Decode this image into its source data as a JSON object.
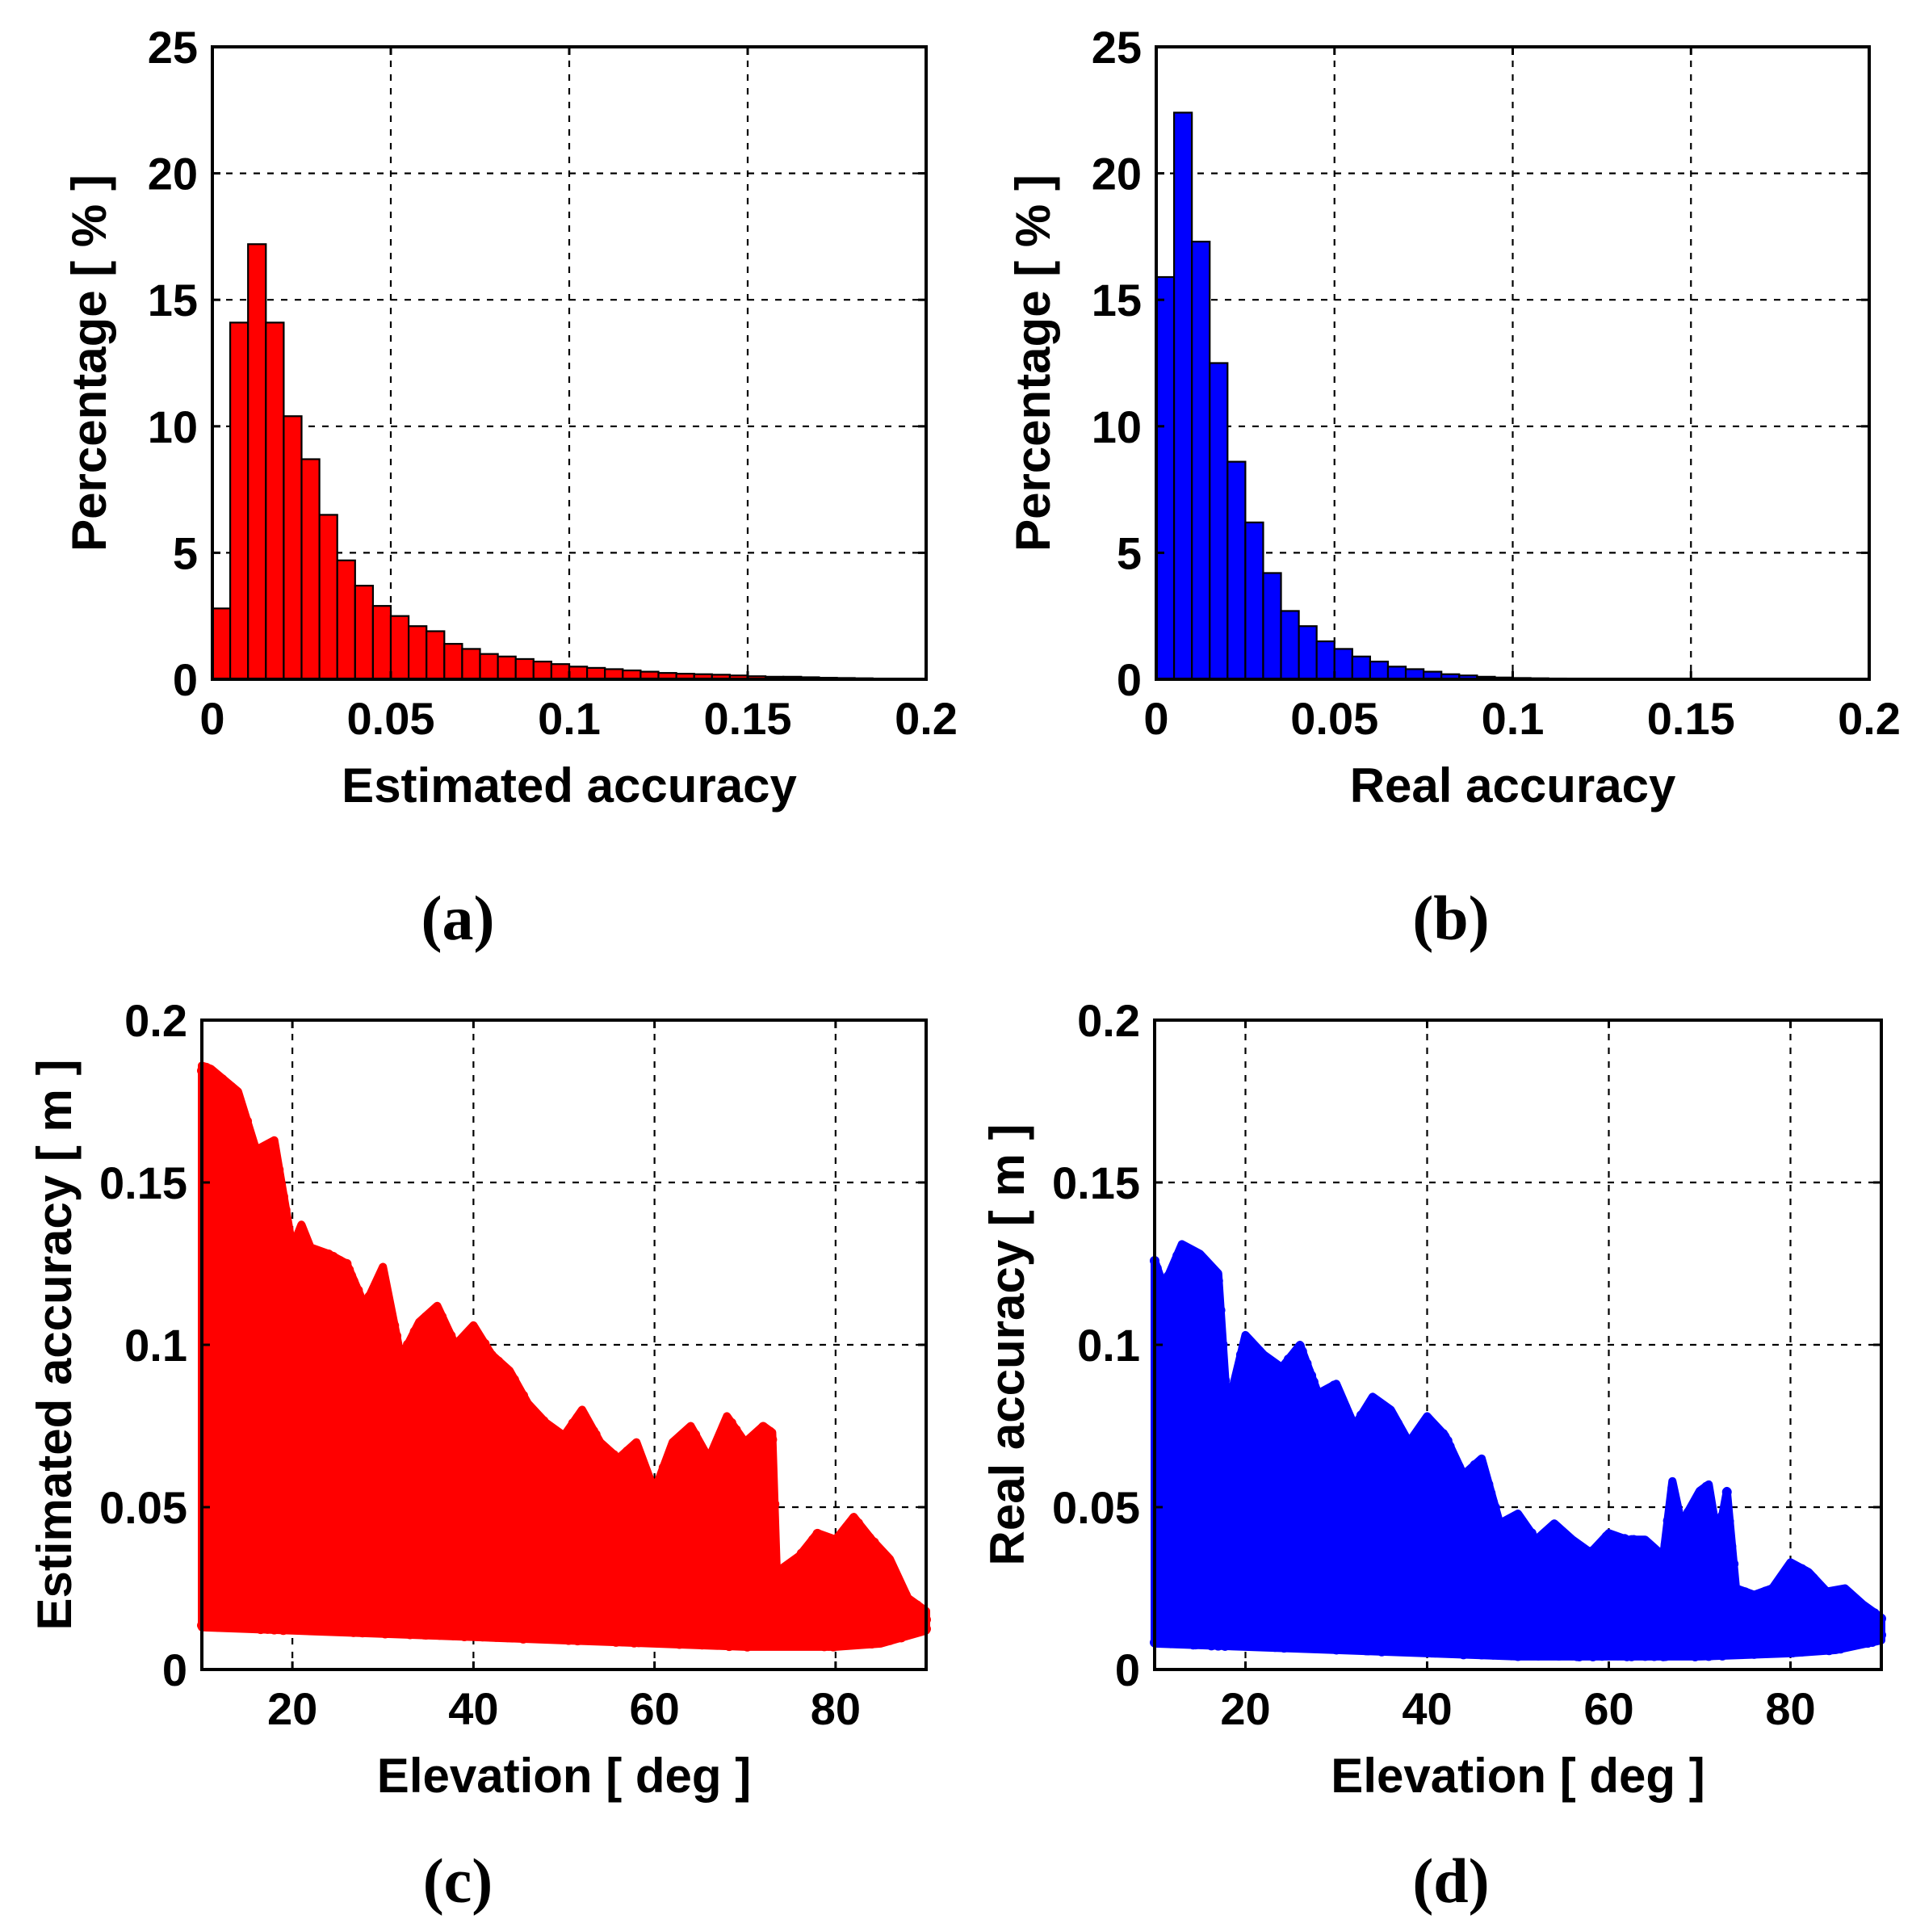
{
  "chart_data": [
    {
      "id": "a",
      "type": "bar",
      "subtype": "histogram",
      "color": "#ff0000",
      "edge_color": "#000000",
      "xlabel": "Estimated accuracy",
      "ylabel": "Percentage [ % ]",
      "xlim": [
        0,
        0.2
      ],
      "ylim": [
        0,
        25
      ],
      "xticks": [
        0,
        0.05,
        0.1,
        0.15,
        0.2
      ],
      "xtick_labels": [
        "0",
        "0.05",
        "0.1",
        "0.15",
        "0.2"
      ],
      "yticks": [
        0,
        5,
        10,
        15,
        20,
        25
      ],
      "ytick_labels": [
        "0",
        "5",
        "10",
        "15",
        "20",
        "25"
      ],
      "grid": true,
      "bin_start": 0.0025,
      "bin_width": 0.005,
      "values": [
        2.8,
        14.1,
        17.2,
        14.1,
        10.4,
        8.7,
        6.5,
        4.7,
        3.7,
        2.9,
        2.5,
        2.1,
        1.9,
        1.4,
        1.2,
        1.0,
        0.9,
        0.8,
        0.7,
        0.6,
        0.5,
        0.45,
        0.4,
        0.35,
        0.3,
        0.25,
        0.22,
        0.2,
        0.18,
        0.15,
        0.12,
        0.1,
        0.1,
        0.08,
        0.06,
        0.05,
        0.04
      ]
    },
    {
      "id": "b",
      "type": "bar",
      "subtype": "histogram",
      "color": "#0000ff",
      "edge_color": "#000000",
      "xlabel": "Real accuracy",
      "ylabel": "Percentage [ % ]",
      "xlim": [
        0,
        0.2
      ],
      "ylim": [
        0,
        25
      ],
      "xticks": [
        0,
        0.05,
        0.1,
        0.15,
        0.2
      ],
      "xtick_labels": [
        "0",
        "0.05",
        "0.1",
        "0.15",
        "0.2"
      ],
      "yticks": [
        0,
        5,
        10,
        15,
        20,
        25
      ],
      "ytick_labels": [
        "0",
        "5",
        "10",
        "15",
        "20",
        "25"
      ],
      "grid": true,
      "bin_start": 0.0025,
      "bin_width": 0.005,
      "values": [
        15.9,
        22.4,
        17.3,
        12.5,
        8.6,
        6.2,
        4.2,
        2.7,
        2.1,
        1.5,
        1.2,
        0.9,
        0.7,
        0.5,
        0.4,
        0.3,
        0.2,
        0.15,
        0.1,
        0.07,
        0.05,
        0.04,
        0.03,
        0.02,
        0.02,
        0.01,
        0.01
      ]
    },
    {
      "id": "c",
      "type": "scatter",
      "color": "#ff0000",
      "xlabel": "Elevation [ deg ]",
      "ylabel": "Estimated accuracy [ m ]",
      "xlim": [
        10,
        90
      ],
      "ylim": [
        0,
        0.2
      ],
      "xticks": [
        20,
        40,
        60,
        80
      ],
      "xtick_labels": [
        "20",
        "40",
        "60",
        "80"
      ],
      "yticks": [
        0,
        0.05,
        0.1,
        0.15,
        0.2
      ],
      "ytick_labels": [
        "0",
        "0.05",
        "0.1",
        "0.15",
        "0.2"
      ],
      "grid": true,
      "upper_envelope": {
        "x": [
          10,
          11,
          14,
          16,
          18,
          20,
          21,
          22,
          24,
          26,
          28,
          30,
          32,
          34,
          36,
          38,
          40,
          42,
          44,
          46,
          48,
          50,
          52,
          54,
          56,
          58,
          60,
          62,
          64,
          66,
          68,
          70,
          72,
          73,
          73.5,
          76,
          78,
          80,
          82,
          84,
          86,
          88,
          90
        ],
        "y": [
          0.186,
          0.185,
          0.178,
          0.16,
          0.163,
          0.13,
          0.137,
          0.13,
          0.128,
          0.125,
          0.112,
          0.124,
          0.096,
          0.107,
          0.112,
          0.1,
          0.106,
          0.097,
          0.092,
          0.082,
          0.076,
          0.072,
          0.08,
          0.07,
          0.065,
          0.07,
          0.055,
          0.07,
          0.075,
          0.065,
          0.078,
          0.07,
          0.075,
          0.073,
          0.03,
          0.035,
          0.042,
          0.04,
          0.047,
          0.04,
          0.034,
          0.022,
          0.018
        ]
      },
      "lower_envelope": {
        "x": [
          10,
          20,
          30,
          40,
          50,
          60,
          70,
          80,
          85,
          90
        ],
        "y": [
          0.013,
          0.012,
          0.011,
          0.01,
          0.009,
          0.008,
          0.007,
          0.007,
          0.008,
          0.012
        ]
      }
    },
    {
      "id": "d",
      "type": "scatter",
      "color": "#0000ff",
      "xlabel": "Elevation [ deg ]",
      "ylabel": "Real accuracy [ m ]",
      "xlim": [
        10,
        90
      ],
      "ylim": [
        0,
        0.2
      ],
      "xticks": [
        20,
        40,
        60,
        80
      ],
      "xtick_labels": [
        "20",
        "40",
        "60",
        "80"
      ],
      "yticks": [
        0,
        0.05,
        0.1,
        0.15,
        0.2
      ],
      "ytick_labels": [
        "0",
        "0.05",
        "0.1",
        "0.15",
        "0.2"
      ],
      "grid": true,
      "upper_envelope": {
        "x": [
          10,
          11,
          13,
          15,
          17,
          18,
          20,
          22,
          24,
          26,
          28,
          30,
          32,
          34,
          36,
          38,
          40,
          42,
          44,
          46,
          48,
          50,
          52,
          54,
          56,
          58,
          60,
          62,
          64,
          66,
          67,
          68,
          70,
          71,
          72,
          73,
          74,
          76,
          78,
          80,
          82,
          84,
          86,
          88,
          90
        ],
        "y": [
          0.126,
          0.118,
          0.131,
          0.128,
          0.122,
          0.08,
          0.103,
          0.097,
          0.093,
          0.1,
          0.085,
          0.088,
          0.075,
          0.084,
          0.08,
          0.07,
          0.078,
          0.072,
          0.06,
          0.065,
          0.045,
          0.048,
          0.04,
          0.045,
          0.04,
          0.036,
          0.042,
          0.04,
          0.04,
          0.035,
          0.058,
          0.045,
          0.055,
          0.057,
          0.04,
          0.055,
          0.025,
          0.023,
          0.025,
          0.033,
          0.03,
          0.024,
          0.025,
          0.02,
          0.016
        ]
      },
      "lower_envelope": {
        "x": [
          10,
          20,
          30,
          40,
          50,
          60,
          70,
          80,
          85,
          90
        ],
        "y": [
          0.008,
          0.007,
          0.006,
          0.005,
          0.004,
          0.004,
          0.004,
          0.005,
          0.006,
          0.009
        ]
      }
    }
  ],
  "panel_labels": [
    "(a)",
    "(b)",
    "(c)",
    "(d)"
  ]
}
